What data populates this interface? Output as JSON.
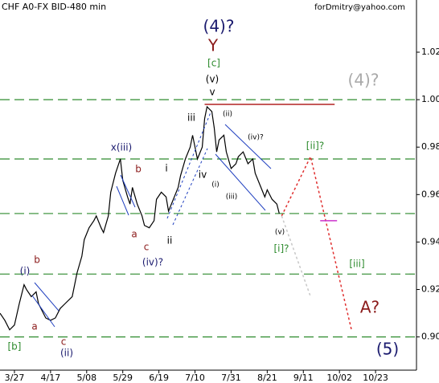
{
  "chart_data": {
    "type": "line",
    "title": "CHF A0-FX BID-480 min",
    "watermark": "forDmitry@yahoo.com",
    "color": "#000000",
    "x": [
      -6,
      -4,
      -2,
      0,
      2,
      4,
      5,
      7,
      9,
      10,
      13,
      15,
      17,
      19,
      21,
      24,
      26,
      28,
      29,
      31,
      33,
      34,
      36,
      37,
      39,
      40,
      42,
      44,
      45,
      47,
      48,
      49,
      51,
      53,
      54,
      56,
      58,
      59,
      61,
      63,
      64,
      66,
      68,
      69,
      71,
      73,
      74,
      76,
      78,
      79,
      80,
      82,
      83,
      84,
      85,
      87,
      88,
      90,
      92,
      93,
      95,
      97,
      99,
      100,
      102,
      104,
      105,
      107,
      109,
      110
    ],
    "values": [
      0.91,
      0.907,
      0.903,
      0.905,
      0.914,
      0.922,
      0.92,
      0.917,
      0.919,
      0.914,
      0.908,
      0.907,
      0.908,
      0.912,
      0.914,
      0.917,
      0.927,
      0.934,
      0.941,
      0.946,
      0.949,
      0.951,
      0.946,
      0.944,
      0.951,
      0.961,
      0.969,
      0.975,
      0.966,
      0.959,
      0.956,
      0.963,
      0.956,
      0.951,
      0.947,
      0.946,
      0.949,
      0.958,
      0.961,
      0.959,
      0.953,
      0.958,
      0.963,
      0.968,
      0.975,
      0.98,
      0.985,
      0.975,
      0.98,
      0.992,
      0.997,
      0.995,
      0.988,
      0.978,
      0.983,
      0.985,
      0.978,
      0.971,
      0.973,
      0.976,
      0.978,
      0.973,
      0.975,
      0.969,
      0.964,
      0.959,
      0.962,
      0.958,
      0.956,
      0.952
    ],
    "projections": [
      {
        "color": "#e03030",
        "dashed": true,
        "x": [
          111,
          123,
          140
        ],
        "values": [
          0.951,
          0.976,
          0.903
        ]
      },
      {
        "color": "#c8c8c8",
        "dashed": true,
        "x": [
          111,
          123
        ],
        "values": [
          0.951,
          0.917
        ]
      },
      {
        "color": "#b22222",
        "dashed": false,
        "x": [
          79,
          133
        ],
        "values": [
          0.998,
          0.998
        ]
      },
      {
        "color": "#cc33cc",
        "dashed": false,
        "x": [
          127,
          134
        ],
        "values": [
          0.949,
          0.949
        ]
      }
    ],
    "levels": [
      1.0,
      0.975,
      0.952,
      0.9265,
      0.9
    ],
    "level_color": "#2e8b2e",
    "xlim": [
      -6,
      167
    ],
    "ylim": [
      0.886,
      1.042
    ],
    "xticks": [
      {
        "value": 0,
        "label": "3/27"
      },
      {
        "value": 15,
        "label": "4/17"
      },
      {
        "value": 30,
        "label": "5/08"
      },
      {
        "value": 45,
        "label": "5/29"
      },
      {
        "value": 60,
        "label": "6/19"
      },
      {
        "value": 75,
        "label": "7/10"
      },
      {
        "value": 90,
        "label": "7/31"
      },
      {
        "value": 105,
        "label": "8/21"
      },
      {
        "value": 120,
        "label": "9/11"
      },
      {
        "value": 135,
        "label": "10/02"
      },
      {
        "value": 150,
        "label": "10/23"
      }
    ],
    "yticks": [
      1.02,
      {
        "value": 1,
        "label": "1.00"
      },
      {
        "value": 0.98,
        "label": "0.980"
      },
      {
        "value": 0.96,
        "label": "0.960"
      },
      {
        "value": 0.94,
        "label": "0.940"
      },
      {
        "value": 0.92,
        "label": "0.920"
      },
      {
        "value": 0.9,
        "label": "0.900"
      }
    ],
    "annotations": [
      "(4)?",
      "Y",
      "[c]",
      "(v)",
      "v",
      "iii",
      "(ii)",
      "(iv)?",
      "x(iii)",
      "b",
      "i",
      "iv",
      "(i)",
      "(iii)",
      "a",
      "c",
      "ii",
      "(iv)?",
      "(v)",
      "[i]?",
      "[ii]?",
      "(4)?",
      "[iii]",
      "A?",
      "(5)",
      "(i)",
      "b",
      "a",
      "c",
      "(ii)",
      "[b]"
    ]
  }
}
